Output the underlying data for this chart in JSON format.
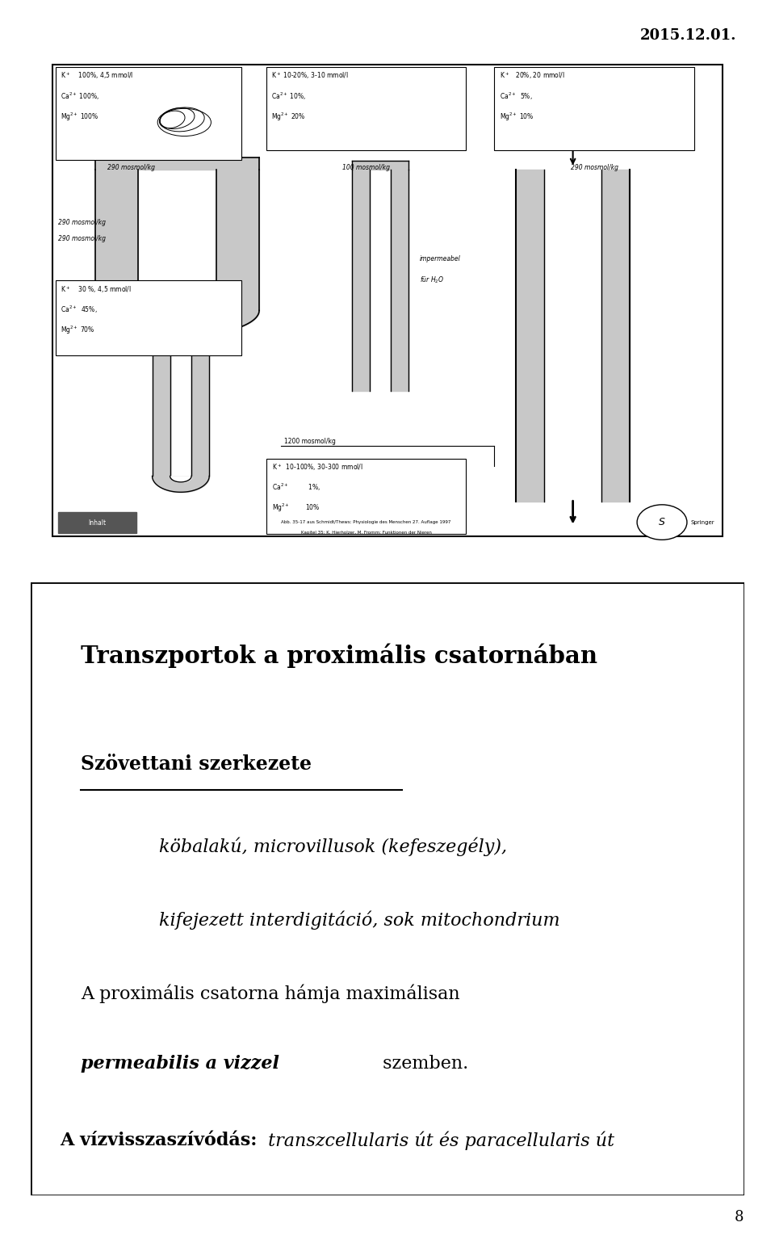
{
  "date_text": "2015.12.01.",
  "page_number": "8",
  "background_color": "#ffffff",
  "title": "Transzportok a proximális csatornában",
  "subtitle_underline": "Szövettani szerkezete",
  "line1_italic": "köbalakú, microvillusok (kefeszegély),",
  "line2_italic": "kifejezett interdigitáció, sok mitochondrium",
  "line3_normal": "A proximális csatorna hámja maximálisan",
  "line4_bold_italic": "permeabilis a vizzel",
  "line4_normal_end": " szemben.",
  "line5_bold": "A vízvisszaszívódás:",
  "line5_italic": " transzcellularis út és paracellularis út",
  "lgray": "#c8c8c8"
}
